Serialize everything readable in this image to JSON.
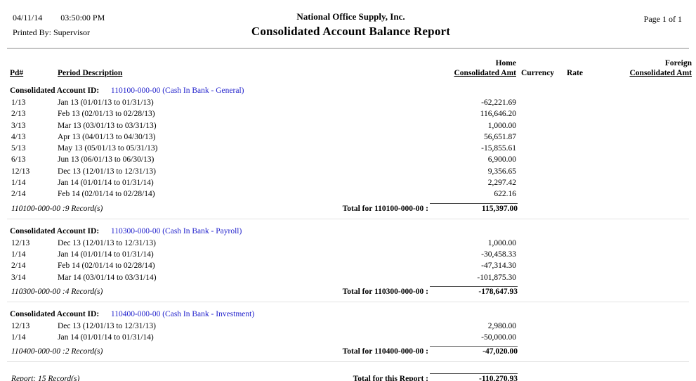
{
  "page": {
    "date": "04/11/14",
    "time": "03:50:00 PM",
    "printed_by": "Printed By: Supervisor",
    "company": "National Office Supply, Inc.",
    "report_title": "Consolidated Account Balance Report",
    "page_label": "Page 1 of  1"
  },
  "columns": {
    "pd": "Pd#",
    "period_description": "Period Description",
    "home_line1": "Home",
    "home_line2": "Consolidated Amt",
    "currency": "Currency",
    "rate": "Rate",
    "foreign_line1": "Foreign",
    "foreign_line2": "Consolidated Amt"
  },
  "account_id_label": "Consolidated Account ID:",
  "sections": [
    {
      "account_link": "110100-000-00 (Cash In Bank - General)",
      "rows": [
        {
          "pd": "1/13",
          "desc": "Jan 13 (01/01/13 to 01/31/13)",
          "amt": "-62,221.69"
        },
        {
          "pd": "2/13",
          "desc": "Feb 13 (02/01/13 to 02/28/13)",
          "amt": "116,646.20"
        },
        {
          "pd": "3/13",
          "desc": "Mar 13 (03/01/13 to 03/31/13)",
          "amt": "1,000.00"
        },
        {
          "pd": "4/13",
          "desc": "Apr 13 (04/01/13 to 04/30/13)",
          "amt": "56,651.87"
        },
        {
          "pd": "5/13",
          "desc": "May 13 (05/01/13 to 05/31/13)",
          "amt": "-15,855.61"
        },
        {
          "pd": "6/13",
          "desc": "Jun 13 (06/01/13 to 06/30/13)",
          "amt": "6,900.00"
        },
        {
          "pd": "12/13",
          "desc": "Dec 13 (12/01/13 to 12/31/13)",
          "amt": "9,356.65"
        },
        {
          "pd": "1/14",
          "desc": "Jan 14 (01/01/14 to 01/31/14)",
          "amt": "2,297.42"
        },
        {
          "pd": "2/14",
          "desc": "Feb 14 (02/01/14 to 02/28/14)",
          "amt": "622.16"
        }
      ],
      "records_label": "110100-000-00 :9 Record(s)",
      "total_label": "Total for 110100-000-00 :",
      "total_amount": "115,397.00"
    },
    {
      "account_link": "110300-000-00 (Cash In Bank - Payroll)",
      "rows": [
        {
          "pd": "12/13",
          "desc": "Dec 13 (12/01/13 to 12/31/13)",
          "amt": "1,000.00"
        },
        {
          "pd": "1/14",
          "desc": "Jan 14 (01/01/14 to 01/31/14)",
          "amt": "-30,458.33"
        },
        {
          "pd": "2/14",
          "desc": "Feb 14 (02/01/14 to 02/28/14)",
          "amt": "-47,314.30"
        },
        {
          "pd": "3/14",
          "desc": "Mar 14 (03/01/14 to 03/31/14)",
          "amt": "-101,875.30"
        }
      ],
      "records_label": "110300-000-00 :4 Record(s)",
      "total_label": "Total for 110300-000-00 :",
      "total_amount": "-178,647.93"
    },
    {
      "account_link": "110400-000-00 (Cash In Bank - Investment)",
      "rows": [
        {
          "pd": "12/13",
          "desc": "Dec 13 (12/01/13 to 12/31/13)",
          "amt": "2,980.00"
        },
        {
          "pd": "1/14",
          "desc": "Jan 14 (01/01/14 to 01/31/14)",
          "amt": "-50,000.00"
        }
      ],
      "records_label": "110400-000-00 :2 Record(s)",
      "total_label": "Total for 110400-000-00 :",
      "total_amount": "-47,020.00"
    }
  ],
  "footer": {
    "records_label": "Report: 15 Record(s)",
    "total_label": "Total for this Report :",
    "total_amount": "-110,270.93"
  },
  "colors": {
    "link_blue": "#2222cc",
    "rule_gray": "#8a8a8a"
  }
}
